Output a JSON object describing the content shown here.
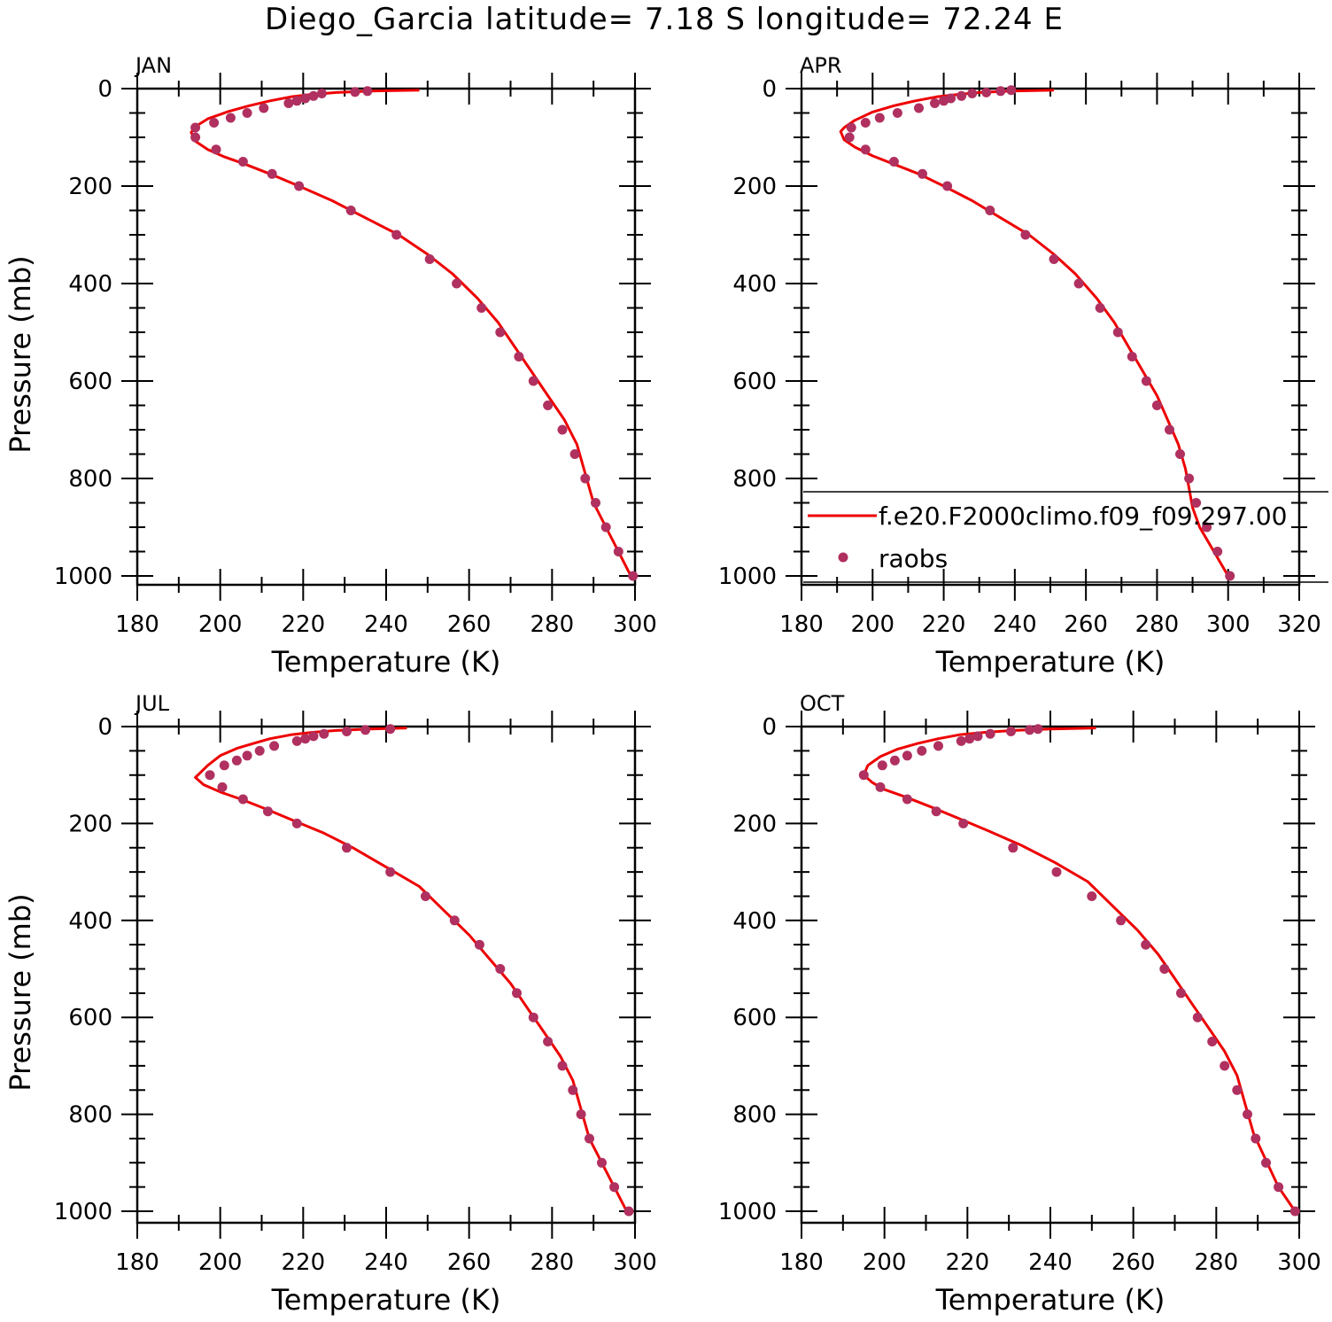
{
  "figure_title": "Diego_Garcia  latitude= 7.18 S longitude= 72.24 E",
  "colors": {
    "model_line": "#ee0000",
    "obs_marker": "#b03060",
    "axes": "#000000"
  },
  "legend": {
    "entries": [
      {
        "label": "f.e20.F2000climo.f09_f09.297.00",
        "style": "line",
        "color": "#ee0000"
      },
      {
        "label": "raobs",
        "style": "marker",
        "color": "#b03060"
      }
    ]
  },
  "chart_data": [
    {
      "type": "line",
      "panel": "JAN",
      "xlabel": "Temperature (K)",
      "ylabel": "Pressure (mb)",
      "xlim": [
        180,
        300
      ],
      "ylim": [
        1000,
        0
      ],
      "xticks": [
        "180",
        "200",
        "220",
        "240",
        "260",
        "280",
        "300"
      ],
      "yticks": [
        "0",
        "200",
        "400",
        "600",
        "800",
        "1000"
      ],
      "series": [
        {
          "name": "f.e20.F2000climo.f09_f09.297.00",
          "style": "line",
          "x": [
            248,
            236,
            228,
            222,
            217,
            212,
            207,
            202,
            197,
            194,
            193,
            194,
            197,
            201,
            206,
            212,
            219,
            227,
            235,
            243,
            250,
            256,
            262,
            267,
            271,
            275,
            279,
            283,
            286,
            288,
            290,
            293,
            296,
            299
          ],
          "y": [
            3,
            5,
            8,
            12,
            17,
            25,
            35,
            47,
            62,
            78,
            90,
            108,
            125,
            140,
            155,
            175,
            200,
            230,
            265,
            300,
            340,
            380,
            430,
            480,
            530,
            580,
            630,
            680,
            730,
            790,
            850,
            900,
            950,
            1000
          ]
        },
        {
          "name": "raobs",
          "style": "marker",
          "x": [
            235.5,
            232.5,
            224.5,
            222.5,
            220.5,
            218.5,
            216.5,
            210.5,
            206.5,
            202.5,
            198.5,
            194,
            194,
            199,
            205.5,
            212.5,
            219,
            231.5,
            242.5,
            250.5,
            257,
            263,
            267.5,
            272,
            275.5,
            279,
            282.5,
            285.5,
            288,
            290.5,
            293,
            296,
            299.5
          ],
          "y": [
            5,
            7,
            10,
            15,
            20,
            25,
            30,
            40,
            50,
            60,
            70,
            80,
            100,
            125,
            150,
            175,
            200,
            250,
            300,
            350,
            400,
            450,
            500,
            550,
            600,
            650,
            700,
            750,
            800,
            850,
            900,
            950,
            1000
          ]
        }
      ]
    },
    {
      "type": "line",
      "panel": "APR",
      "xlabel": "Temperature (K)",
      "ylabel": "",
      "xlim": [
        180,
        320
      ],
      "ylim": [
        1000,
        0
      ],
      "xticks": [
        "180",
        "200",
        "220",
        "240",
        "260",
        "280",
        "300",
        "320"
      ],
      "yticks": [
        "0",
        "200",
        "400",
        "600",
        "800",
        "1000"
      ],
      "series": [
        {
          "name": "f.e20.F2000climo.f09_f09.297.00",
          "style": "line",
          "x": [
            251,
            239,
            230,
            224,
            218,
            212,
            206,
            200,
            195,
            192,
            191,
            192,
            195,
            200,
            206,
            213,
            220,
            228,
            236,
            244,
            251,
            257,
            263,
            268,
            272,
            276,
            280,
            283,
            286,
            288,
            289,
            290,
            292,
            296,
            300
          ],
          "y": [
            3,
            5,
            8,
            12,
            17,
            25,
            35,
            48,
            65,
            80,
            88,
            105,
            120,
            138,
            155,
            175,
            200,
            230,
            265,
            300,
            340,
            380,
            430,
            480,
            530,
            580,
            630,
            680,
            730,
            780,
            820,
            860,
            900,
            950,
            1000
          ]
        },
        {
          "name": "raobs",
          "style": "marker",
          "x": [
            239,
            236,
            232,
            228,
            225,
            222,
            220,
            217.5,
            213,
            207,
            202,
            198,
            194,
            193.5,
            198,
            206,
            214,
            221,
            233,
            243,
            251,
            258,
            264,
            269,
            273,
            277,
            280,
            283.5,
            286.5,
            289,
            291,
            294,
            297,
            300.5
          ],
          "y": [
            3,
            5,
            8,
            10,
            15,
            20,
            25,
            30,
            40,
            50,
            60,
            70,
            80,
            100,
            125,
            150,
            175,
            200,
            250,
            300,
            350,
            400,
            450,
            500,
            550,
            600,
            650,
            700,
            750,
            800,
            850,
            900,
            950,
            1000
          ]
        }
      ]
    },
    {
      "type": "line",
      "panel": "JUL",
      "xlabel": "Temperature (K)",
      "ylabel": "Pressure (mb)",
      "xlim": [
        180,
        300
      ],
      "ylim": [
        1000,
        0
      ],
      "xticks": [
        "180",
        "200",
        "220",
        "240",
        "260",
        "280",
        "300"
      ],
      "yticks": [
        "0",
        "200",
        "400",
        "600",
        "800",
        "1000"
      ],
      "series": [
        {
          "name": "f.e20.F2000climo.f09_f09.297.00",
          "style": "line",
          "x": [
            245,
            236,
            228,
            222,
            217,
            212,
            208,
            204,
            200,
            197,
            194,
            196,
            200,
            205,
            211,
            218,
            225,
            232,
            240,
            248,
            254,
            260,
            265,
            270,
            274,
            278,
            282,
            285,
            287,
            289,
            292,
            295,
            298
          ],
          "y": [
            3,
            5,
            8,
            12,
            17,
            25,
            35,
            45,
            60,
            80,
            105,
            120,
            135,
            150,
            170,
            195,
            220,
            250,
            290,
            330,
            380,
            430,
            480,
            530,
            580,
            630,
            680,
            730,
            790,
            850,
            900,
            950,
            1000
          ]
        },
        {
          "name": "raobs",
          "style": "marker",
          "x": [
            241,
            235,
            230.5,
            225,
            222.5,
            220.5,
            218.5,
            213,
            209.5,
            206.5,
            204,
            201,
            197.5,
            200.5,
            205.5,
            211.5,
            218.5,
            230.5,
            241,
            249.5,
            256.5,
            262.5,
            267.5,
            271.5,
            275.5,
            279,
            282.5,
            285,
            287,
            289,
            292,
            295,
            298.5
          ],
          "y": [
            5,
            7,
            10,
            15,
            20,
            25,
            30,
            40,
            50,
            60,
            70,
            80,
            100,
            125,
            150,
            175,
            200,
            250,
            300,
            350,
            400,
            450,
            500,
            550,
            600,
            650,
            700,
            750,
            800,
            850,
            900,
            950,
            1000
          ]
        }
      ]
    },
    {
      "type": "line",
      "panel": "OCT",
      "xlabel": "Temperature (K)",
      "ylabel": "",
      "xlim": [
        180,
        300
      ],
      "ylim": [
        1000,
        0
      ],
      "xticks": [
        "180",
        "200",
        "220",
        "240",
        "260",
        "280",
        "300"
      ],
      "yticks": [
        "0",
        "200",
        "400",
        "600",
        "800",
        "1000"
      ],
      "series": [
        {
          "name": "f.e20.F2000climo.f09_f09.297.00",
          "style": "line",
          "x": [
            251,
            240,
            231,
            224,
            218,
            213,
            208,
            203,
            199,
            196,
            195,
            197,
            200,
            205,
            211,
            218,
            225,
            233,
            241,
            249,
            255,
            261,
            266,
            270,
            274,
            278,
            282,
            285,
            287,
            289,
            292,
            295,
            299
          ],
          "y": [
            3,
            5,
            8,
            12,
            17,
            25,
            35,
            47,
            62,
            80,
            100,
            115,
            130,
            145,
            165,
            190,
            215,
            245,
            280,
            320,
            370,
            420,
            470,
            520,
            570,
            620,
            670,
            720,
            780,
            840,
            895,
            950,
            1000
          ]
        },
        {
          "name": "raobs",
          "style": "marker",
          "x": [
            237,
            235,
            230.5,
            225.5,
            222.5,
            220.5,
            218.5,
            213,
            209,
            205.5,
            202.5,
            199.5,
            195,
            199,
            205.5,
            212.5,
            219,
            231,
            241.5,
            250,
            257,
            263,
            267.5,
            271.5,
            275.5,
            279,
            282,
            285,
            287.5,
            289.5,
            292,
            295,
            299
          ],
          "y": [
            5,
            7,
            10,
            15,
            20,
            25,
            30,
            40,
            50,
            60,
            70,
            80,
            100,
            125,
            150,
            175,
            200,
            250,
            300,
            350,
            400,
            450,
            500,
            550,
            600,
            650,
            700,
            750,
            800,
            850,
            900,
            950,
            1000
          ]
        }
      ]
    }
  ]
}
